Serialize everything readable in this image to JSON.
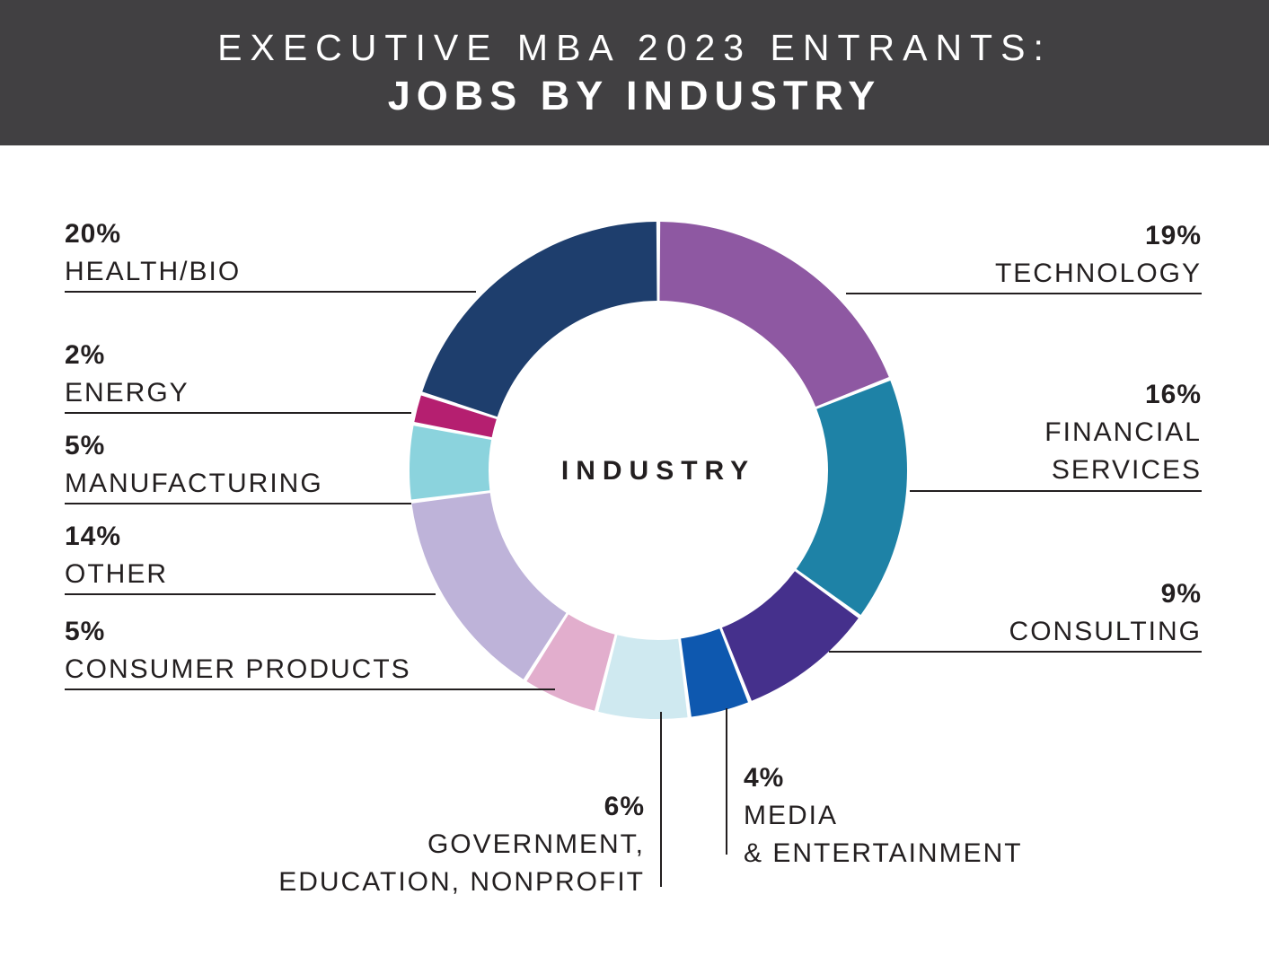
{
  "header": {
    "title_line1": "EXECUTIVE MBA 2023 ENTRANTS:",
    "title_line2": "JOBS BY INDUSTRY"
  },
  "colors": {
    "header_background": "#414042",
    "header_text": "#ffffff",
    "body_text": "#231f20",
    "leader_line": "#231f20",
    "background": "#ffffff"
  },
  "chart_data": {
    "type": "pie",
    "variant": "donut",
    "title": "EXECUTIVE MBA 2023 ENTRANTS: JOBS BY INDUSTRY",
    "center_label": "INDUSTRY",
    "units": "percent",
    "total": 100,
    "start_angle_deg": 0,
    "direction": "clockwise",
    "legend_position": "around-chart-with-leader-lines",
    "segments": [
      {
        "id": "technology",
        "label": "TECHNOLOGY",
        "label_lines": [
          "TECHNOLOGY"
        ],
        "value": 19,
        "pct_label": "19%",
        "color": "#8e58a2"
      },
      {
        "id": "financial-services",
        "label": "FINANCIAL SERVICES",
        "label_lines": [
          "FINANCIAL",
          "SERVICES"
        ],
        "value": 16,
        "pct_label": "16%",
        "color": "#1e82a6"
      },
      {
        "id": "consulting",
        "label": "CONSULTING",
        "label_lines": [
          "CONSULTING"
        ],
        "value": 9,
        "pct_label": "9%",
        "color": "#45308c"
      },
      {
        "id": "media-entertainment",
        "label": "MEDIA & ENTERTAINMENT",
        "label_lines": [
          "MEDIA",
          "& ENTERTAINMENT"
        ],
        "value": 4,
        "pct_label": "4%",
        "color": "#0e58af"
      },
      {
        "id": "government-education-nonprofit",
        "label": "GOVERNMENT, EDUCATION, NONPROFIT",
        "label_lines": [
          "GOVERNMENT,",
          "EDUCATION, NONPROFIT"
        ],
        "value": 6,
        "pct_label": "6%",
        "color": "#cfe9f0"
      },
      {
        "id": "consumer-products",
        "label": "CONSUMER PRODUCTS",
        "label_lines": [
          "CONSUMER PRODUCTS"
        ],
        "value": 5,
        "pct_label": "5%",
        "color": "#e2aecd"
      },
      {
        "id": "other",
        "label": "OTHER",
        "label_lines": [
          "OTHER"
        ],
        "value": 14,
        "pct_label": "14%",
        "color": "#beb3d9"
      },
      {
        "id": "manufacturing",
        "label": "MANUFACTURING",
        "label_lines": [
          "MANUFACTURING"
        ],
        "value": 5,
        "pct_label": "5%",
        "color": "#8bd3dd"
      },
      {
        "id": "energy",
        "label": "ENERGY",
        "label_lines": [
          "ENERGY"
        ],
        "value": 2,
        "pct_label": "2%",
        "color": "#b51f70"
      },
      {
        "id": "health-bio",
        "label": "HEALTH/BIO",
        "label_lines": [
          "HEALTH/BIO"
        ],
        "value": 20,
        "pct_label": "20%",
        "color": "#1e3e6d"
      }
    ]
  }
}
